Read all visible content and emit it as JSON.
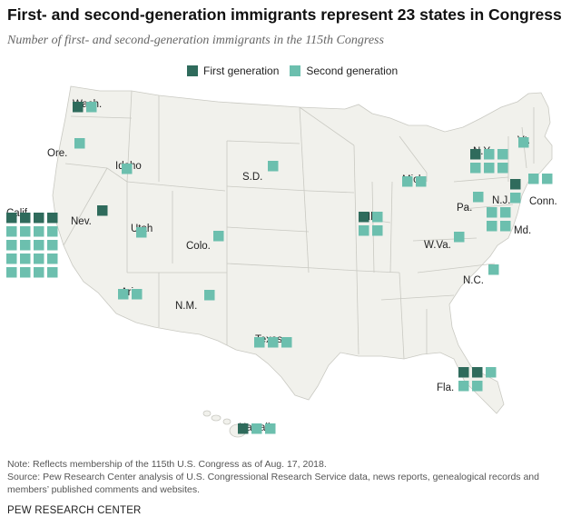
{
  "title": "First- and second-generation immigrants represent 23 states in Congress",
  "subtitle": "Number of first- and second-generation immigrants in the 115th Congress",
  "legend": {
    "first": "First generation",
    "second": "Second generation"
  },
  "colors": {
    "first": "#2f6b5c",
    "second": "#6cbfae",
    "land": "#f1f1ec",
    "border": "#c9c9c2"
  },
  "chart_data": {
    "type": "map",
    "title": "First- and second-generation immigrants represent 23 states in Congress",
    "states": [
      {
        "label": "Wash.",
        "first": 1,
        "second": 1
      },
      {
        "label": "Ore.",
        "first": 0,
        "second": 1
      },
      {
        "label": "Idaho",
        "first": 0,
        "second": 1
      },
      {
        "label": "Calif.",
        "first": 4,
        "second": 16
      },
      {
        "label": "Nev.",
        "first": 1,
        "second": 0
      },
      {
        "label": "Utah",
        "first": 0,
        "second": 1
      },
      {
        "label": "Ariz.",
        "first": 0,
        "second": 2
      },
      {
        "label": "Colo.",
        "first": 0,
        "second": 1
      },
      {
        "label": "N.M.",
        "first": 0,
        "second": 1
      },
      {
        "label": "S.D.",
        "first": 0,
        "second": 1
      },
      {
        "label": "Texas",
        "first": 0,
        "second": 3
      },
      {
        "label": "Ill.",
        "first": 1,
        "second": 3
      },
      {
        "label": "Mich.",
        "first": 0,
        "second": 2
      },
      {
        "label": "N.Y.",
        "first": 1,
        "second": 5
      },
      {
        "label": "Vt.",
        "first": 0,
        "second": 1
      },
      {
        "label": "Conn.",
        "first": 0,
        "second": 2
      },
      {
        "label": "N.J.",
        "first": 1,
        "second": 1
      },
      {
        "label": "Pa.",
        "first": 0,
        "second": 1
      },
      {
        "label": "Md.",
        "first": 0,
        "second": 4
      },
      {
        "label": "W.Va.",
        "first": 0,
        "second": 1
      },
      {
        "label": "N.C.",
        "first": 0,
        "second": 1
      },
      {
        "label": "Fla.",
        "first": 2,
        "second": 3
      },
      {
        "label": "Hawaii",
        "first": 1,
        "second": 2
      }
    ]
  },
  "note": "Note: Reflects membership of the 115th U.S. Congress as of Aug. 17, 2018.",
  "source": "Source: Pew Research Center analysis of U.S. Congressional Research Service data, news reports, genealogical records and members’ published comments and websites.",
  "brand": "PEW RESEARCH CENTER"
}
